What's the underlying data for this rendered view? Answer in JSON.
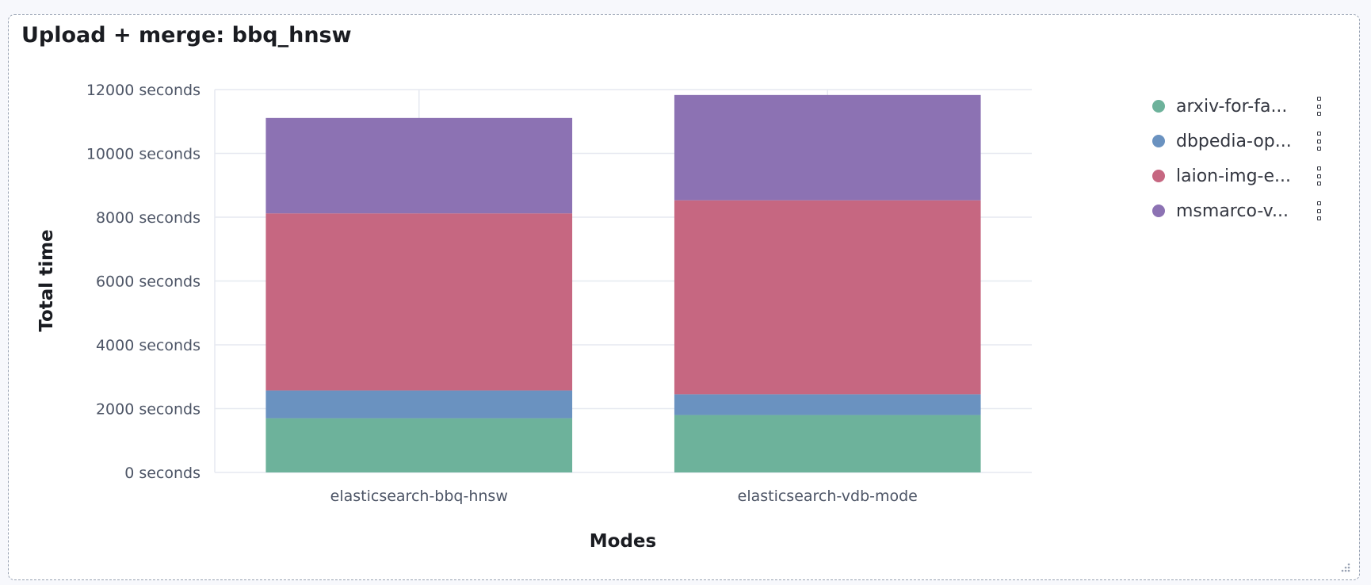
{
  "panel": {
    "title": "Upload + merge: bbq_hnsw"
  },
  "legend": {
    "items": [
      {
        "label": "arxiv-for-fa...",
        "color": "#6db29b"
      },
      {
        "label": "dbpedia-op...",
        "color": "#6a92c0"
      },
      {
        "label": "laion-img-e...",
        "color": "#c66781"
      },
      {
        "label": "msmarco-v...",
        "color": "#8c72b3"
      }
    ]
  },
  "chart_data": {
    "type": "bar",
    "stacked": true,
    "categories": [
      "elasticsearch-bbq-hnsw",
      "elasticsearch-vdb-mode"
    ],
    "series": [
      {
        "name": "arxiv-for-fa...",
        "color": "#6db29b",
        "values": [
          1700,
          1800
        ]
      },
      {
        "name": "dbpedia-op...",
        "color": "#6a92c0",
        "values": [
          870,
          650
        ]
      },
      {
        "name": "laion-img-e...",
        "color": "#c66781",
        "values": [
          5550,
          6080
        ]
      },
      {
        "name": "msmarco-v...",
        "color": "#8c72b3",
        "values": [
          2990,
          3300
        ]
      }
    ],
    "xlabel": "Modes",
    "ylabel": "Total time",
    "ylim": [
      0,
      12000
    ],
    "yticks": [
      0,
      2000,
      4000,
      6000,
      8000,
      10000,
      12000
    ],
    "ytick_suffix": " seconds",
    "grid": true,
    "legend_position": "right"
  }
}
